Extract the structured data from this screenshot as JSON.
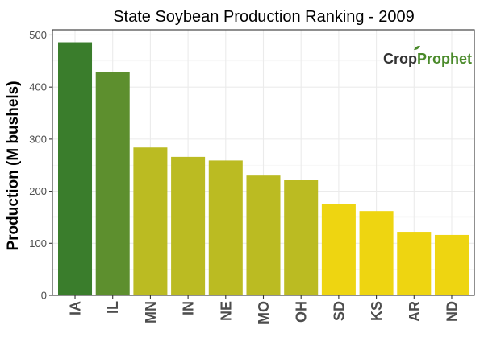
{
  "chart_data": {
    "type": "bar",
    "title": "State Soybean Production Ranking - 2009",
    "xlabel": "",
    "ylabel": "Production (M bushels)",
    "ylim": [
      0,
      510
    ],
    "yticks": [
      0,
      100,
      200,
      300,
      400,
      500
    ],
    "grid": true,
    "categories": [
      "IA",
      "IL",
      "MN",
      "IN",
      "NE",
      "MO",
      "OH",
      "SD",
      "KS",
      "AR",
      "ND"
    ],
    "values": [
      486,
      429,
      284,
      266,
      259,
      230,
      221,
      176,
      162,
      122,
      116
    ],
    "bar_colors": [
      "#3a7d2c",
      "#5d8f2e",
      "#bbbb22",
      "#bbbb22",
      "#bbbb22",
      "#bbbb22",
      "#bbbb22",
      "#eed511",
      "#eed511",
      "#eed511",
      "#eed511"
    ]
  },
  "logo": {
    "part1": "Crop",
    "part2": "Prophet",
    "color1": "#333333",
    "color2": "#4a8a2a"
  }
}
